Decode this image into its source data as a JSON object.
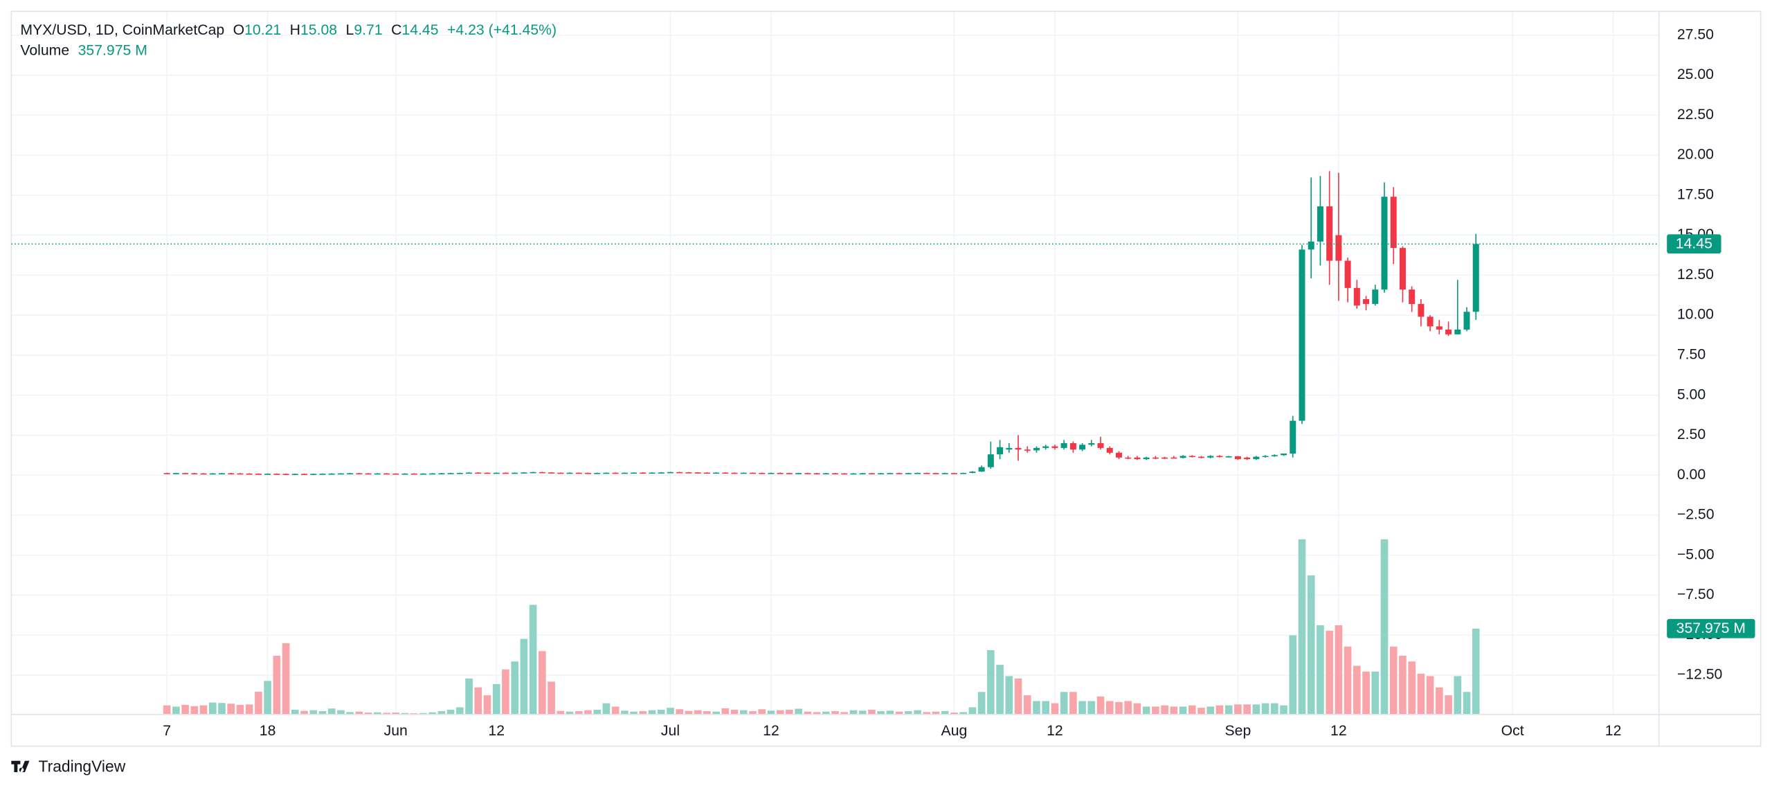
{
  "chart_data": {
    "type": "candlestick",
    "legend": {
      "symbol": "MYX/USD, 1D, CoinMarketCap",
      "o_label": "O",
      "o": "10.21",
      "h_label": "H",
      "h": "15.08",
      "l_label": "L",
      "l": "9.71",
      "c_label": "C",
      "c": "14.45",
      "change": "+4.23 (+41.45%)",
      "volume_label": "Volume",
      "volume": "357.975 M"
    },
    "brand": "TradingView",
    "up_color": "#089981",
    "down_color": "#f23645",
    "volume_up_color": "#8fd3c6",
    "volume_down_color": "#f8a4a9",
    "grid": true,
    "xlim": [
      "04-20",
      "10-17"
    ],
    "ylim": [
      -14.96,
      28.99
    ],
    "volume_lim": [
      0,
      2930
    ],
    "xticks": [
      {
        "value": "05-07",
        "label": "7"
      },
      {
        "value": "05-18",
        "label": "18"
      },
      {
        "value": "06-01",
        "label": "Jun"
      },
      {
        "value": "06-12",
        "label": "12"
      },
      {
        "value": "07-01",
        "label": "Jul"
      },
      {
        "value": "07-12",
        "label": "12"
      },
      {
        "value": "08-01",
        "label": "Aug"
      },
      {
        "value": "08-12",
        "label": "12"
      },
      {
        "value": "09-01",
        "label": "Sep"
      },
      {
        "value": "09-12",
        "label": "12"
      },
      {
        "value": "10-01",
        "label": "Oct"
      },
      {
        "value": "10-12",
        "label": "12"
      }
    ],
    "yticks": [
      {
        "value": 27.5,
        "label": "27.50"
      },
      {
        "value": 25,
        "label": "25.00"
      },
      {
        "value": 22.5,
        "label": "22.50"
      },
      {
        "value": 20,
        "label": "20.00"
      },
      {
        "value": 17.5,
        "label": "17.50"
      },
      {
        "value": 15,
        "label": "15.00"
      },
      {
        "value": 12.5,
        "label": "12.50"
      },
      {
        "value": 10,
        "label": "10.00"
      },
      {
        "value": 7.5,
        "label": "7.50"
      },
      {
        "value": 5,
        "label": "5.00"
      },
      {
        "value": 2.5,
        "label": "2.50"
      },
      {
        "value": 0,
        "label": "0.00"
      },
      {
        "value": -2.5,
        "label": "−2.50"
      },
      {
        "value": -5,
        "label": "−5.00"
      },
      {
        "value": -7.5,
        "label": "−7.50"
      },
      {
        "value": -10,
        "label": "−10.00"
      },
      {
        "value": -12.5,
        "label": "−12.50"
      }
    ],
    "x": [
      "05-07",
      "05-08",
      "05-09",
      "05-10",
      "05-11",
      "05-12",
      "05-13",
      "05-14",
      "05-15",
      "05-16",
      "05-17",
      "05-18",
      "05-19",
      "05-20",
      "05-21",
      "05-22",
      "05-23",
      "05-24",
      "05-25",
      "05-26",
      "05-27",
      "05-28",
      "05-29",
      "05-30",
      "05-31",
      "06-01",
      "06-02",
      "06-03",
      "06-04",
      "06-05",
      "06-06",
      "06-07",
      "06-08",
      "06-09",
      "06-10",
      "06-11",
      "06-12",
      "06-13",
      "06-14",
      "06-15",
      "06-16",
      "06-17",
      "06-18",
      "06-19",
      "06-20",
      "06-21",
      "06-22",
      "06-23",
      "06-24",
      "06-25",
      "06-26",
      "06-27",
      "06-28",
      "06-29",
      "06-30",
      "07-01",
      "07-02",
      "07-03",
      "07-04",
      "07-05",
      "07-06",
      "07-07",
      "07-08",
      "07-09",
      "07-10",
      "07-11",
      "07-12",
      "07-13",
      "07-14",
      "07-15",
      "07-16",
      "07-17",
      "07-18",
      "07-19",
      "07-20",
      "07-21",
      "07-22",
      "07-23",
      "07-24",
      "07-25",
      "07-26",
      "07-27",
      "07-28",
      "07-29",
      "07-30",
      "07-31",
      "08-01",
      "08-02",
      "08-03",
      "08-04",
      "08-05",
      "08-06",
      "08-07",
      "08-08",
      "08-09",
      "08-10",
      "08-11",
      "08-12",
      "08-13",
      "08-14",
      "08-15",
      "08-16",
      "08-17",
      "08-18",
      "08-19",
      "08-20",
      "08-21",
      "08-22",
      "08-23",
      "08-24",
      "08-25",
      "08-26",
      "08-27",
      "08-28",
      "08-29",
      "08-30",
      "08-31",
      "09-01",
      "09-02",
      "09-03",
      "09-04",
      "09-05",
      "09-06",
      "09-07",
      "09-08",
      "09-09",
      "09-10",
      "09-11",
      "09-12",
      "09-13",
      "09-14",
      "09-15",
      "09-16",
      "09-17",
      "09-18",
      "09-19",
      "09-20",
      "09-21",
      "09-22",
      "09-23",
      "09-24",
      "09-25",
      "09-26",
      "09-27"
    ],
    "candles": [
      [
        0.13,
        0.15,
        0.1,
        0.12
      ],
      [
        0.12,
        0.15,
        0.1,
        0.13
      ],
      [
        0.13,
        0.15,
        0.1,
        0.12
      ],
      [
        0.12,
        0.14,
        0.09,
        0.11
      ],
      [
        0.11,
        0.13,
        0.08,
        0.1
      ],
      [
        0.1,
        0.13,
        0.08,
        0.11
      ],
      [
        0.11,
        0.14,
        0.09,
        0.12
      ],
      [
        0.12,
        0.14,
        0.09,
        0.11
      ],
      [
        0.11,
        0.13,
        0.08,
        0.1
      ],
      [
        0.1,
        0.12,
        0.07,
        0.09
      ],
      [
        0.09,
        0.11,
        0.06,
        0.08
      ],
      [
        0.08,
        0.11,
        0.06,
        0.09
      ],
      [
        0.09,
        0.11,
        0.06,
        0.08
      ],
      [
        0.08,
        0.1,
        0.05,
        0.07
      ],
      [
        0.07,
        0.1,
        0.05,
        0.08
      ],
      [
        0.08,
        0.1,
        0.05,
        0.07
      ],
      [
        0.07,
        0.1,
        0.05,
        0.08
      ],
      [
        0.08,
        0.11,
        0.06,
        0.09
      ],
      [
        0.09,
        0.12,
        0.07,
        0.1
      ],
      [
        0.1,
        0.13,
        0.08,
        0.11
      ],
      [
        0.11,
        0.14,
        0.09,
        0.12
      ],
      [
        0.12,
        0.14,
        0.09,
        0.11
      ],
      [
        0.11,
        0.13,
        0.08,
        0.1
      ],
      [
        0.1,
        0.13,
        0.08,
        0.11
      ],
      [
        0.11,
        0.13,
        0.08,
        0.1
      ],
      [
        0.1,
        0.12,
        0.07,
        0.09
      ],
      [
        0.09,
        0.12,
        0.07,
        0.1
      ],
      [
        0.1,
        0.12,
        0.07,
        0.09
      ],
      [
        0.09,
        0.12,
        0.07,
        0.1
      ],
      [
        0.1,
        0.13,
        0.08,
        0.11
      ],
      [
        0.11,
        0.14,
        0.09,
        0.12
      ],
      [
        0.12,
        0.15,
        0.1,
        0.13
      ],
      [
        0.13,
        0.16,
        0.11,
        0.14
      ],
      [
        0.14,
        0.18,
        0.12,
        0.16
      ],
      [
        0.16,
        0.18,
        0.13,
        0.15
      ],
      [
        0.15,
        0.17,
        0.12,
        0.14
      ],
      [
        0.14,
        0.17,
        0.12,
        0.15
      ],
      [
        0.15,
        0.17,
        0.12,
        0.14
      ],
      [
        0.14,
        0.17,
        0.12,
        0.15
      ],
      [
        0.15,
        0.19,
        0.13,
        0.17
      ],
      [
        0.17,
        0.21,
        0.15,
        0.19
      ],
      [
        0.19,
        0.21,
        0.15,
        0.17
      ],
      [
        0.17,
        0.19,
        0.13,
        0.15
      ],
      [
        0.15,
        0.17,
        0.12,
        0.14
      ],
      [
        0.14,
        0.17,
        0.12,
        0.15
      ],
      [
        0.15,
        0.17,
        0.12,
        0.14
      ],
      [
        0.14,
        0.16,
        0.11,
        0.13
      ],
      [
        0.13,
        0.16,
        0.11,
        0.14
      ],
      [
        0.14,
        0.17,
        0.12,
        0.15
      ],
      [
        0.15,
        0.17,
        0.12,
        0.14
      ],
      [
        0.14,
        0.17,
        0.12,
        0.15
      ],
      [
        0.15,
        0.18,
        0.13,
        0.16
      ],
      [
        0.16,
        0.18,
        0.13,
        0.15
      ],
      [
        0.15,
        0.18,
        0.13,
        0.16
      ],
      [
        0.16,
        0.19,
        0.14,
        0.17
      ],
      [
        0.17,
        0.21,
        0.15,
        0.19
      ],
      [
        0.19,
        0.21,
        0.16,
        0.18
      ],
      [
        0.18,
        0.2,
        0.15,
        0.17
      ],
      [
        0.17,
        0.19,
        0.14,
        0.16
      ],
      [
        0.16,
        0.18,
        0.13,
        0.15
      ],
      [
        0.15,
        0.18,
        0.13,
        0.16
      ],
      [
        0.16,
        0.18,
        0.13,
        0.15
      ],
      [
        0.15,
        0.17,
        0.12,
        0.14
      ],
      [
        0.14,
        0.17,
        0.12,
        0.15
      ],
      [
        0.15,
        0.17,
        0.12,
        0.14
      ],
      [
        0.14,
        0.16,
        0.11,
        0.13
      ],
      [
        0.13,
        0.16,
        0.11,
        0.14
      ],
      [
        0.14,
        0.16,
        0.11,
        0.13
      ],
      [
        0.13,
        0.15,
        0.1,
        0.12
      ],
      [
        0.12,
        0.15,
        0.1,
        0.13
      ],
      [
        0.13,
        0.15,
        0.1,
        0.12
      ],
      [
        0.12,
        0.14,
        0.09,
        0.11
      ],
      [
        0.11,
        0.14,
        0.09,
        0.12
      ],
      [
        0.12,
        0.14,
        0.09,
        0.11
      ],
      [
        0.11,
        0.13,
        0.08,
        0.1
      ],
      [
        0.1,
        0.13,
        0.08,
        0.11
      ],
      [
        0.11,
        0.14,
        0.09,
        0.12
      ],
      [
        0.12,
        0.14,
        0.09,
        0.11
      ],
      [
        0.11,
        0.14,
        0.09,
        0.12
      ],
      [
        0.12,
        0.15,
        0.1,
        0.13
      ],
      [
        0.13,
        0.15,
        0.1,
        0.12
      ],
      [
        0.12,
        0.15,
        0.1,
        0.13
      ],
      [
        0.13,
        0.16,
        0.11,
        0.14
      ],
      [
        0.14,
        0.16,
        0.11,
        0.13
      ],
      [
        0.13,
        0.15,
        0.1,
        0.12
      ],
      [
        0.12,
        0.15,
        0.1,
        0.13
      ],
      [
        0.13,
        0.15,
        0.1,
        0.12
      ],
      [
        0.12,
        0.16,
        0.1,
        0.14
      ],
      [
        0.14,
        0.25,
        0.12,
        0.22
      ],
      [
        0.22,
        0.6,
        0.2,
        0.5
      ],
      [
        0.5,
        2.1,
        0.4,
        1.3
      ],
      [
        1.3,
        2.2,
        1.0,
        1.75
      ],
      [
        1.6,
        2.0,
        1.4,
        1.7
      ],
      [
        1.7,
        2.5,
        0.9,
        1.6
      ],
      [
        1.6,
        1.8,
        1.4,
        1.55
      ],
      [
        1.55,
        1.8,
        1.4,
        1.7
      ],
      [
        1.7,
        1.9,
        1.6,
        1.8
      ],
      [
        1.8,
        1.9,
        1.6,
        1.7
      ],
      [
        1.7,
        2.2,
        1.6,
        2.0
      ],
      [
        2.0,
        2.1,
        1.4,
        1.6
      ],
      [
        1.6,
        2.0,
        1.5,
        1.9
      ],
      [
        1.9,
        2.2,
        1.8,
        2.0
      ],
      [
        2.0,
        2.4,
        1.6,
        1.7
      ],
      [
        1.7,
        1.8,
        1.3,
        1.4
      ],
      [
        1.4,
        1.5,
        1.0,
        1.1
      ],
      [
        1.1,
        1.2,
        1.0,
        1.05
      ],
      [
        1.1,
        1.2,
        0.95,
        1.0
      ],
      [
        1.0,
        1.15,
        0.95,
        1.1
      ],
      [
        1.1,
        1.2,
        1.0,
        1.05
      ],
      [
        1.1,
        1.15,
        1.0,
        1.05
      ],
      [
        1.1,
        1.2,
        1.05,
        1.08
      ],
      [
        1.08,
        1.25,
        1.05,
        1.2
      ],
      [
        1.2,
        1.25,
        1.1,
        1.15
      ],
      [
        1.15,
        1.2,
        1.05,
        1.1
      ],
      [
        1.1,
        1.25,
        1.05,
        1.2
      ],
      [
        1.2,
        1.25,
        1.1,
        1.15
      ],
      [
        1.15,
        1.2,
        1.1,
        1.18
      ],
      [
        1.18,
        1.2,
        0.95,
        1.0
      ],
      [
        1.1,
        1.15,
        0.95,
        1.0
      ],
      [
        1.0,
        1.2,
        0.95,
        1.15
      ],
      [
        1.15,
        1.25,
        1.1,
        1.2
      ],
      [
        1.2,
        1.3,
        1.15,
        1.25
      ],
      [
        1.25,
        1.35,
        1.2,
        1.35
      ],
      [
        1.35,
        3.7,
        1.1,
        3.4
      ],
      [
        3.4,
        14.4,
        3.2,
        14.1
      ],
      [
        14.1,
        18.6,
        12.3,
        14.6
      ],
      [
        14.6,
        18.7,
        13.1,
        16.8
      ],
      [
        16.8,
        19.0,
        11.9,
        13.4
      ],
      [
        15.0,
        18.9,
        10.9,
        13.4
      ],
      [
        13.4,
        13.6,
        10.8,
        11.7
      ],
      [
        11.7,
        12.2,
        10.4,
        10.6
      ],
      [
        11.0,
        11.2,
        10.3,
        10.7
      ],
      [
        10.7,
        11.9,
        10.6,
        11.6
      ],
      [
        11.6,
        18.3,
        11.4,
        17.4
      ],
      [
        17.4,
        18.0,
        13.2,
        14.2
      ],
      [
        14.2,
        14.3,
        10.8,
        11.6
      ],
      [
        11.6,
        11.8,
        10.2,
        10.7
      ],
      [
        10.7,
        11.0,
        9.3,
        9.9
      ],
      [
        9.9,
        10.0,
        9.0,
        9.3
      ],
      [
        9.3,
        9.7,
        8.8,
        9.1
      ],
      [
        9.1,
        9.6,
        8.7,
        8.8
      ],
      [
        8.8,
        12.2,
        8.8,
        9.1
      ],
      [
        9.1,
        10.5,
        9.0,
        10.21
      ],
      [
        10.21,
        15.08,
        9.71,
        14.45
      ]
    ],
    "volume": [
      38,
      33,
      40,
      35,
      38,
      50,
      48,
      45,
      40,
      42,
      95,
      140,
      245,
      297,
      20,
      15,
      18,
      14,
      25,
      18,
      10,
      12,
      8,
      9,
      7,
      8,
      6,
      5,
      6,
      9,
      14,
      20,
      30,
      150,
      113,
      80,
      127,
      188,
      221,
      315,
      457,
      264,
      137,
      15,
      12,
      14,
      18,
      20,
      47,
      33,
      16,
      12,
      14,
      18,
      20,
      28,
      22,
      15,
      18,
      14,
      12,
      26,
      20,
      18,
      14,
      22,
      16,
      18,
      20,
      24,
      12,
      10,
      12,
      14,
      10,
      18,
      16,
      20,
      14,
      16,
      12,
      14,
      18,
      10,
      12,
      14,
      8,
      10,
      30,
      94,
      268,
      207,
      160,
      150,
      80,
      56,
      56,
      47,
      94,
      94,
      56,
      56,
      75,
      56,
      52,
      56,
      47,
      33,
      33,
      38,
      33,
      33,
      38,
      28,
      33,
      38,
      38,
      42,
      42,
      42,
      47,
      47,
      38,
      330,
      730,
      580,
      372,
      349,
      372,
      283,
      203,
      179,
      179,
      730,
      283,
      245,
      221,
      170,
      160,
      113,
      80,
      160,
      94,
      357.975
    ]
  }
}
